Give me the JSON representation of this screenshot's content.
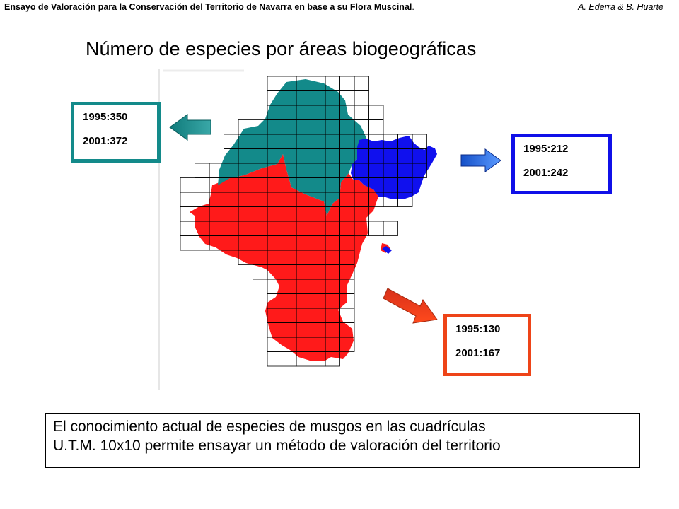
{
  "header": {
    "title": "Ensayo de Valoración para la Conservación del Territorio de Navarra  en base a su Flora Muscinal",
    "title_end": ".",
    "authors": "A. Ederra & B. Huarte"
  },
  "main_title": "Número de especies por áreas biogeográficas",
  "areas": [
    {
      "id": "teal",
      "color": "#138a8a",
      "count_1995": "1995:350",
      "count_2001": "2001:372",
      "arrow_direction": "left"
    },
    {
      "id": "blue",
      "color": "#1010e8",
      "count_1995": "1995:212",
      "count_2001": "2001:242",
      "arrow_direction": "right"
    },
    {
      "id": "red",
      "color": "#ee4418",
      "count_1995": "1995:130",
      "count_2001": "2001:167",
      "arrow_direction": "down-right"
    }
  ],
  "map_colors": {
    "teal": "#138a8a",
    "blue": "#1010ee",
    "red": "#ff1a1a",
    "grid": "#000000"
  },
  "note": {
    "line1": "El conocimiento actual de especies de musgos en las cuadrículas",
    "line2": "U.T.M. 10x10 permite ensayar un método de valoración del territorio"
  }
}
